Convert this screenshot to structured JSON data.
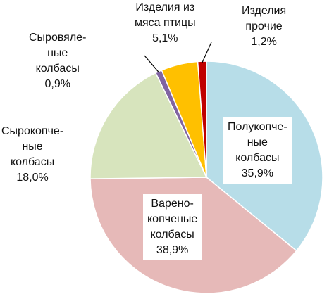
{
  "chart_data": {
    "type": "pie",
    "title": "",
    "start_angle_deg": 0,
    "direction": "clockwise",
    "slices": [
      {
        "label_lines": [
          "Полукопче-",
          "ные",
          "колбасы"
        ],
        "value": 35.9,
        "value_text": "35,9%",
        "color": "#b7dde8",
        "label_style": "inside-boxed"
      },
      {
        "label_lines": [
          "Варено-",
          "копченые",
          "колбасы"
        ],
        "value": 38.9,
        "value_text": "38,9%",
        "color": "#e6b9b8",
        "label_style": "inside-boxed"
      },
      {
        "label_lines": [
          "Сырокопче-",
          "ные",
          "колбасы"
        ],
        "value": 18.0,
        "value_text": "18,0%",
        "color": "#d7e4bd",
        "label_style": "outside"
      },
      {
        "label_lines": [
          "Сыровяле-",
          "ные",
          "колбасы"
        ],
        "value": 0.9,
        "value_text": "0,9%",
        "color": "#8064a2",
        "label_style": "outside-leader"
      },
      {
        "label_lines": [
          "Изделия из",
          "мяса птицы"
        ],
        "value": 5.1,
        "value_text": "5,1%",
        "color": "#ffc000",
        "label_style": "outside"
      },
      {
        "label_lines": [
          "Изделия",
          "прочие"
        ],
        "value": 1.2,
        "value_text": "1,2%",
        "color": "#c00000",
        "label_style": "outside-leader"
      }
    ]
  }
}
